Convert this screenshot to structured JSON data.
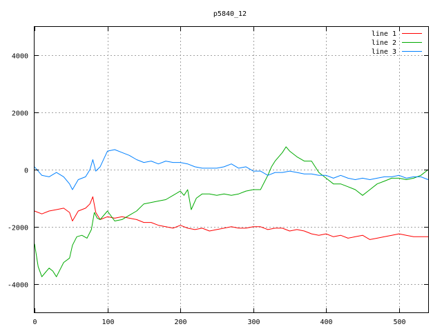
{
  "chart_data": {
    "type": "line",
    "title": "p5840_12",
    "xlabel": "",
    "ylabel": "",
    "xlim": [
      0,
      540
    ],
    "ylim": [
      -5000,
      5000
    ],
    "xticks": [
      "0",
      "100",
      "200",
      "300",
      "400",
      "500"
    ],
    "yticks": [
      "-4000",
      "-2000",
      "0",
      "2000",
      "4000"
    ],
    "grid": true,
    "legend": "top-right",
    "series": [
      {
        "name": "line 1",
        "color": "#ff0000",
        "x": [
          0,
          10,
          20,
          30,
          40,
          48,
          52,
          60,
          70,
          76,
          80,
          84,
          90,
          100,
          110,
          120,
          130,
          140,
          150,
          160,
          170,
          180,
          190,
          200,
          210,
          220,
          230,
          240,
          250,
          260,
          270,
          280,
          290,
          300,
          310,
          320,
          330,
          340,
          350,
          360,
          370,
          380,
          390,
          400,
          410,
          420,
          430,
          440,
          450,
          460,
          470,
          480,
          490,
          500,
          510,
          520,
          530,
          540
        ],
        "y": [
          -1450,
          -1550,
          -1450,
          -1400,
          -1350,
          -1500,
          -1800,
          -1450,
          -1350,
          -1200,
          -950,
          -1500,
          -1750,
          -1650,
          -1700,
          -1650,
          -1700,
          -1750,
          -1850,
          -1850,
          -1950,
          -2000,
          -2050,
          -1950,
          -2050,
          -2100,
          -2050,
          -2150,
          -2100,
          -2050,
          -2000,
          -2050,
          -2050,
          -2000,
          -2000,
          -2100,
          -2050,
          -2050,
          -2150,
          -2100,
          -2150,
          -2250,
          -2300,
          -2250,
          -2350,
          -2300,
          -2400,
          -2350,
          -2300,
          -2450,
          -2400,
          -2350,
          -2300,
          -2250,
          -2300,
          -2350,
          -2350,
          -2350
        ]
      },
      {
        "name": "line 2",
        "color": "#00aa00",
        "x": [
          0,
          5,
          10,
          15,
          20,
          25,
          30,
          40,
          48,
          52,
          58,
          65,
          72,
          78,
          82,
          86,
          90,
          100,
          110,
          120,
          130,
          140,
          150,
          160,
          170,
          180,
          190,
          200,
          205,
          210,
          215,
          222,
          230,
          240,
          250,
          260,
          270,
          280,
          290,
          300,
          310,
          315,
          320,
          325,
          330,
          340,
          345,
          350,
          360,
          370,
          380,
          390,
          400,
          410,
          420,
          430,
          440,
          450,
          460,
          470,
          480,
          490,
          500,
          510,
          520,
          530,
          540
        ],
        "y": [
          -2600,
          -3400,
          -3750,
          -3600,
          -3450,
          -3550,
          -3750,
          -3250,
          -3100,
          -2650,
          -2350,
          -2300,
          -2400,
          -2100,
          -1500,
          -1700,
          -1750,
          -1450,
          -1800,
          -1750,
          -1600,
          -1450,
          -1200,
          -1150,
          -1100,
          -1050,
          -900,
          -750,
          -900,
          -700,
          -1400,
          -1000,
          -850,
          -850,
          -900,
          -850,
          -900,
          -850,
          -750,
          -700,
          -700,
          -450,
          -200,
          100,
          300,
          600,
          800,
          650,
          450,
          300,
          300,
          -100,
          -300,
          -500,
          -500,
          -600,
          -700,
          -900,
          -700,
          -500,
          -400,
          -300,
          -300,
          -350,
          -300,
          -200,
          0
        ]
      },
      {
        "name": "line 3",
        "color": "#0080ff",
        "x": [
          0,
          10,
          20,
          30,
          40,
          48,
          52,
          60,
          70,
          76,
          80,
          84,
          90,
          100,
          110,
          120,
          130,
          140,
          150,
          160,
          170,
          180,
          190,
          200,
          210,
          220,
          230,
          240,
          250,
          260,
          270,
          280,
          290,
          300,
          310,
          320,
          330,
          340,
          350,
          360,
          370,
          380,
          390,
          400,
          410,
          420,
          430,
          440,
          450,
          460,
          470,
          480,
          490,
          500,
          510,
          520,
          530,
          540
        ],
        "y": [
          100,
          -200,
          -250,
          -100,
          -250,
          -500,
          -700,
          -350,
          -250,
          0,
          350,
          -50,
          100,
          650,
          700,
          600,
          500,
          350,
          250,
          300,
          200,
          300,
          250,
          250,
          200,
          100,
          50,
          50,
          50,
          100,
          200,
          50,
          100,
          -50,
          -50,
          -200,
          -100,
          -100,
          -50,
          -100,
          -150,
          -150,
          -200,
          -200,
          -300,
          -200,
          -300,
          -350,
          -300,
          -350,
          -300,
          -250,
          -250,
          -200,
          -300,
          -250,
          -250,
          -350
        ]
      }
    ]
  }
}
